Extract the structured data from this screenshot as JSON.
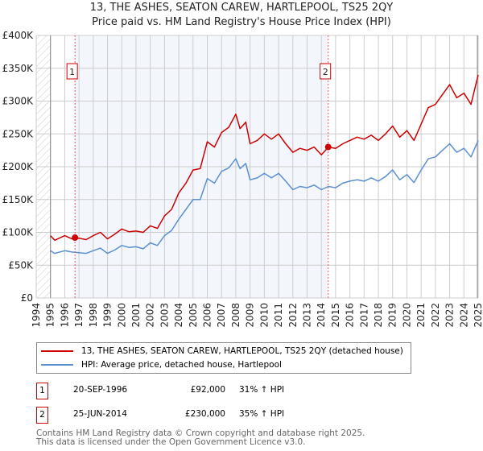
{
  "title": "13, THE ASHES, SEATON CAREW, HARTLEPOOL, TS25 2QY",
  "subtitle": "Price paid vs. HM Land Registry's House Price Index (HPI)",
  "chart_data": {
    "type": "line",
    "title": "13, THE ASHES, SEATON CAREW, HARTLEPOOL, TS25 2QY",
    "subtitle": "Price paid vs. HM Land Registry's House Price Index (HPI)",
    "xlim": [
      1994,
      2025
    ],
    "ylim": [
      0,
      400000
    ],
    "yticks": [
      0,
      50000,
      100000,
      150000,
      200000,
      250000,
      300000,
      350000,
      400000
    ],
    "ytick_labels": [
      "£0",
      "£50K",
      "£100K",
      "£150K",
      "£200K",
      "£250K",
      "£300K",
      "£350K",
      "£400K"
    ],
    "xticks": [
      "1994",
      "1995",
      "1996",
      "1997",
      "1998",
      "1999",
      "2000",
      "2001",
      "2002",
      "2003",
      "2004",
      "2005",
      "2006",
      "2007",
      "2008",
      "2009",
      "2010",
      "2011",
      "2012",
      "2013",
      "2014",
      "2015",
      "2016",
      "2017",
      "2018",
      "2019",
      "2020",
      "2021",
      "2022",
      "2023",
      "2024",
      "2025"
    ],
    "grid": true,
    "legend_position": "bottom",
    "series": [
      {
        "name": "13, THE ASHES, SEATON CAREW, HARTLEPOOL, TS25 2QY (detached house)",
        "color": "#cc0000",
        "x": [
          1995,
          1995.3,
          1996,
          1996.5,
          1997,
          1997.5,
          1998,
          1998.5,
          1999,
          1999.5,
          2000,
          2000.5,
          2001,
          2001.5,
          2002,
          2002.5,
          2003,
          2003.5,
          2004,
          2004.5,
          2005,
          2005.5,
          2006,
          2006.5,
          2007,
          2007.5,
          2008,
          2008.3,
          2008.7,
          2009,
          2009.5,
          2010,
          2010.5,
          2011,
          2011.5,
          2012,
          2012.5,
          2013,
          2013.5,
          2014,
          2014.5,
          2015,
          2015.5,
          2016,
          2016.5,
          2017,
          2017.5,
          2018,
          2018.5,
          2019,
          2019.5,
          2020,
          2020.5,
          2021,
          2021.5,
          2022,
          2022.5,
          2023,
          2023.5,
          2024,
          2024.5,
          2025
        ],
        "y": [
          95000,
          88000,
          95000,
          90000,
          91000,
          89000,
          95000,
          100000,
          90000,
          97000,
          105000,
          101000,
          102000,
          100000,
          110000,
          106000,
          125000,
          135000,
          160000,
          175000,
          195000,
          197000,
          238000,
          230000,
          252000,
          260000,
          280000,
          258000,
          268000,
          235000,
          240000,
          250000,
          242000,
          250000,
          235000,
          222000,
          228000,
          225000,
          230000,
          218000,
          230000,
          228000,
          235000,
          240000,
          245000,
          242000,
          248000,
          240000,
          250000,
          262000,
          245000,
          255000,
          240000,
          265000,
          290000,
          295000,
          310000,
          325000,
          305000,
          312000,
          295000,
          340000
        ]
      },
      {
        "name": "HPI: Average price, detached house, Hartlepool",
        "color": "#5b8fd0",
        "x": [
          1995,
          1995.3,
          1996,
          1996.5,
          1997,
          1997.5,
          1998,
          1998.5,
          1999,
          1999.5,
          2000,
          2000.5,
          2001,
          2001.5,
          2002,
          2002.5,
          2003,
          2003.5,
          2004,
          2004.5,
          2005,
          2005.5,
          2006,
          2006.5,
          2007,
          2007.5,
          2008,
          2008.3,
          2008.7,
          2009,
          2009.5,
          2010,
          2010.5,
          2011,
          2011.5,
          2012,
          2012.5,
          2013,
          2013.5,
          2014,
          2014.5,
          2015,
          2015.5,
          2016,
          2016.5,
          2017,
          2017.5,
          2018,
          2018.5,
          2019,
          2019.5,
          2020,
          2020.5,
          2021,
          2021.5,
          2022,
          2022.5,
          2023,
          2023.5,
          2024,
          2024.5,
          2025
        ],
        "y": [
          72000,
          68000,
          72000,
          70000,
          69000,
          68000,
          72000,
          76000,
          68000,
          73000,
          80000,
          77000,
          78000,
          75000,
          84000,
          80000,
          95000,
          103000,
          120000,
          135000,
          150000,
          150000,
          182000,
          175000,
          193000,
          198000,
          212000,
          197000,
          205000,
          180000,
          183000,
          190000,
          183000,
          190000,
          178000,
          165000,
          170000,
          168000,
          172000,
          165000,
          170000,
          168000,
          175000,
          178000,
          180000,
          178000,
          183000,
          178000,
          185000,
          195000,
          180000,
          188000,
          176000,
          195000,
          212000,
          215000,
          225000,
          235000,
          222000,
          228000,
          215000,
          240000
        ]
      }
    ],
    "annotations": [
      {
        "label": "1",
        "x": 1996.72,
        "y": 92000
      },
      {
        "label": "2",
        "x": 2014.48,
        "y": 230000
      }
    ],
    "shaded_range": [
      1996.72,
      2014.48
    ],
    "hatched_range": [
      1994,
      1995
    ]
  },
  "legend": {
    "property": "13, THE ASHES, SEATON CAREW, HARTLEPOOL, TS25 2QY (detached house)",
    "hpi": "HPI: Average price, detached house, Hartlepool"
  },
  "sales": [
    {
      "num": "1",
      "date": "20-SEP-1996",
      "price": "£92,000",
      "hpi": "31% ↑ HPI"
    },
    {
      "num": "2",
      "date": "25-JUN-2014",
      "price": "£230,000",
      "hpi": "35% ↑ HPI"
    }
  ],
  "footer": {
    "line1": "Contains HM Land Registry data © Crown copyright and database right 2025.",
    "line2": "This data is licensed under the Open Government Licence v3.0."
  }
}
